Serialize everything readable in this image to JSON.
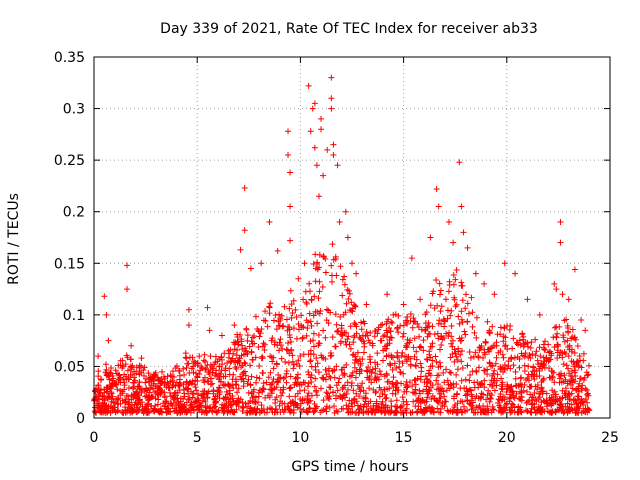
{
  "chart_data": {
    "type": "scatter",
    "title": "Day 339 of 2021, Rate Of TEC Index for receiver ab33",
    "xlabel": "GPS time / hours",
    "ylabel": "ROTI / TECUs",
    "xlim": [
      0,
      25
    ],
    "ylim": [
      0,
      0.35
    ],
    "xticks": [
      "0",
      "5",
      "10",
      "15",
      "20",
      "25"
    ],
    "yticks": [
      "0",
      "0.05",
      "0.1",
      "0.15",
      "0.2",
      "0.25",
      "0.3",
      "0.35"
    ],
    "grid": true,
    "marker": "plus",
    "color": "#ff0000",
    "series": [
      {
        "points": [
          [
            0.2,
            0.06
          ],
          [
            0.5,
            0.118
          ],
          [
            0.6,
            0.1
          ],
          [
            0.7,
            0.075
          ],
          [
            1.6,
            0.148
          ],
          [
            1.6,
            0.125
          ],
          [
            1.8,
            0.07
          ],
          [
            2.3,
            0.058
          ],
          [
            4.6,
            0.105
          ],
          [
            4.6,
            0.09
          ],
          [
            5.1,
            0.06
          ],
          [
            5.5,
            0.107
          ],
          [
            5.6,
            0.085
          ],
          [
            6.2,
            0.08
          ],
          [
            6.8,
            0.09
          ],
          [
            7.1,
            0.163
          ],
          [
            7.3,
            0.223
          ],
          [
            7.3,
            0.182
          ],
          [
            7.6,
            0.145
          ],
          [
            8.1,
            0.15
          ],
          [
            8.5,
            0.19
          ],
          [
            8.9,
            0.162
          ],
          [
            9.4,
            0.278
          ],
          [
            9.4,
            0.255
          ],
          [
            9.5,
            0.238
          ],
          [
            9.5,
            0.205
          ],
          [
            9.5,
            0.172
          ],
          [
            9.9,
            0.135
          ],
          [
            10.2,
            0.15
          ],
          [
            10.4,
            0.322
          ],
          [
            10.5,
            0.278
          ],
          [
            10.6,
            0.3
          ],
          [
            10.7,
            0.305
          ],
          [
            10.7,
            0.262
          ],
          [
            10.8,
            0.245
          ],
          [
            10.9,
            0.215
          ],
          [
            11.0,
            0.28
          ],
          [
            11.0,
            0.29
          ],
          [
            11.1,
            0.235
          ],
          [
            11.3,
            0.26
          ],
          [
            11.5,
            0.33
          ],
          [
            11.5,
            0.31
          ],
          [
            11.5,
            0.3
          ],
          [
            11.6,
            0.265
          ],
          [
            11.6,
            0.255
          ],
          [
            11.8,
            0.245
          ],
          [
            11.9,
            0.19
          ],
          [
            12.2,
            0.2
          ],
          [
            12.3,
            0.175
          ],
          [
            12.5,
            0.15
          ],
          [
            12.7,
            0.14
          ],
          [
            13.2,
            0.11
          ],
          [
            13.9,
            0.09
          ],
          [
            14.2,
            0.12
          ],
          [
            14.5,
            0.1
          ],
          [
            15.0,
            0.11
          ],
          [
            15.4,
            0.155
          ],
          [
            15.8,
            0.115
          ],
          [
            16.3,
            0.175
          ],
          [
            16.6,
            0.222
          ],
          [
            16.7,
            0.205
          ],
          [
            17.2,
            0.19
          ],
          [
            17.4,
            0.17
          ],
          [
            17.7,
            0.248
          ],
          [
            17.8,
            0.205
          ],
          [
            17.9,
            0.18
          ],
          [
            18.1,
            0.165
          ],
          [
            18.5,
            0.14
          ],
          [
            18.9,
            0.13
          ],
          [
            19.4,
            0.12
          ],
          [
            19.9,
            0.15
          ],
          [
            20.4,
            0.14
          ],
          [
            21.0,
            0.115
          ],
          [
            21.6,
            0.1
          ],
          [
            22.3,
            0.13
          ],
          [
            22.4,
            0.125
          ],
          [
            22.6,
            0.19
          ],
          [
            22.6,
            0.17
          ],
          [
            22.7,
            0.12
          ],
          [
            23.0,
            0.115
          ],
          [
            23.3,
            0.144
          ],
          [
            23.6,
            0.095
          ],
          [
            23.8,
            0.085
          ]
        ]
      }
    ],
    "envelope": [
      [
        0,
        0.04
      ],
      [
        0.5,
        0.05
      ],
      [
        1,
        0.04
      ],
      [
        1.5,
        0.06
      ],
      [
        2,
        0.05
      ],
      [
        2.5,
        0.045
      ],
      [
        3,
        0.04
      ],
      [
        3.5,
        0.04
      ],
      [
        4,
        0.045
      ],
      [
        4.5,
        0.06
      ],
      [
        5,
        0.05
      ],
      [
        5.5,
        0.06
      ],
      [
        6,
        0.055
      ],
      [
        6.5,
        0.06
      ],
      [
        7,
        0.08
      ],
      [
        7.5,
        0.09
      ],
      [
        8,
        0.1
      ],
      [
        8.5,
        0.11
      ],
      [
        9,
        0.1
      ],
      [
        9.5,
        0.12
      ],
      [
        10,
        0.1
      ],
      [
        10.5,
        0.15
      ],
      [
        11,
        0.16
      ],
      [
        11.5,
        0.18
      ],
      [
        12,
        0.14
      ],
      [
        12.5,
        0.11
      ],
      [
        13,
        0.09
      ],
      [
        13.5,
        0.08
      ],
      [
        14,
        0.09
      ],
      [
        14.5,
        0.1
      ],
      [
        15,
        0.09
      ],
      [
        15.5,
        0.1
      ],
      [
        16,
        0.09
      ],
      [
        16.5,
        0.14
      ],
      [
        17,
        0.12
      ],
      [
        17.5,
        0.14
      ],
      [
        18,
        0.13
      ],
      [
        18.5,
        0.1
      ],
      [
        19,
        0.09
      ],
      [
        19.5,
        0.08
      ],
      [
        20,
        0.09
      ],
      [
        20.5,
        0.08
      ],
      [
        21,
        0.075
      ],
      [
        21.5,
        0.07
      ],
      [
        22,
        0.07
      ],
      [
        22.5,
        0.1
      ],
      [
        23,
        0.09
      ],
      [
        23.5,
        0.07
      ],
      [
        24,
        0.05
      ]
    ]
  }
}
